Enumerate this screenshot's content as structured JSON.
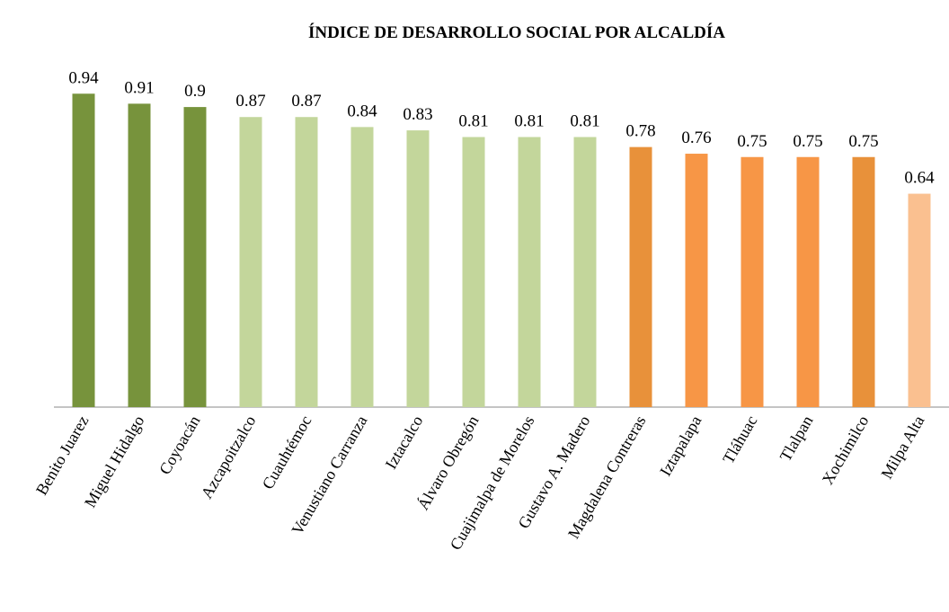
{
  "chart_data": {
    "type": "bar",
    "title": "ÍNDICE DE DESARROLLO SOCIAL POR ALCALDÍA",
    "categories": [
      "Benito Juarez",
      "Miguel Hidalgo",
      "Coyoacán",
      "Azcapoitzalco",
      "Cuauhtémoc",
      "Venustiano Carranza",
      "Iztacalco",
      "Álvaro Obregón",
      "Cuajimalpa de Morelos",
      "Gustavo A. Madero",
      "Magdalena Contreras",
      "Iztapalapa",
      "Tláhuac",
      "Tlalpan",
      "Xochimilco",
      "Milpa Alta"
    ],
    "values": [
      0.94,
      0.91,
      0.9,
      0.87,
      0.87,
      0.84,
      0.83,
      0.81,
      0.81,
      0.81,
      0.78,
      0.76,
      0.75,
      0.75,
      0.75,
      0.64
    ],
    "colors": [
      "#77933c",
      "#77933c",
      "#77933c",
      "#c3d69b",
      "#c3d69b",
      "#c3d69b",
      "#c3d69b",
      "#c3d69b",
      "#c3d69b",
      "#c3d69b",
      "#e8913a",
      "#f79646",
      "#f79646",
      "#f79646",
      "#e8913a",
      "#fac090"
    ],
    "ylim": [
      0,
      1
    ]
  }
}
